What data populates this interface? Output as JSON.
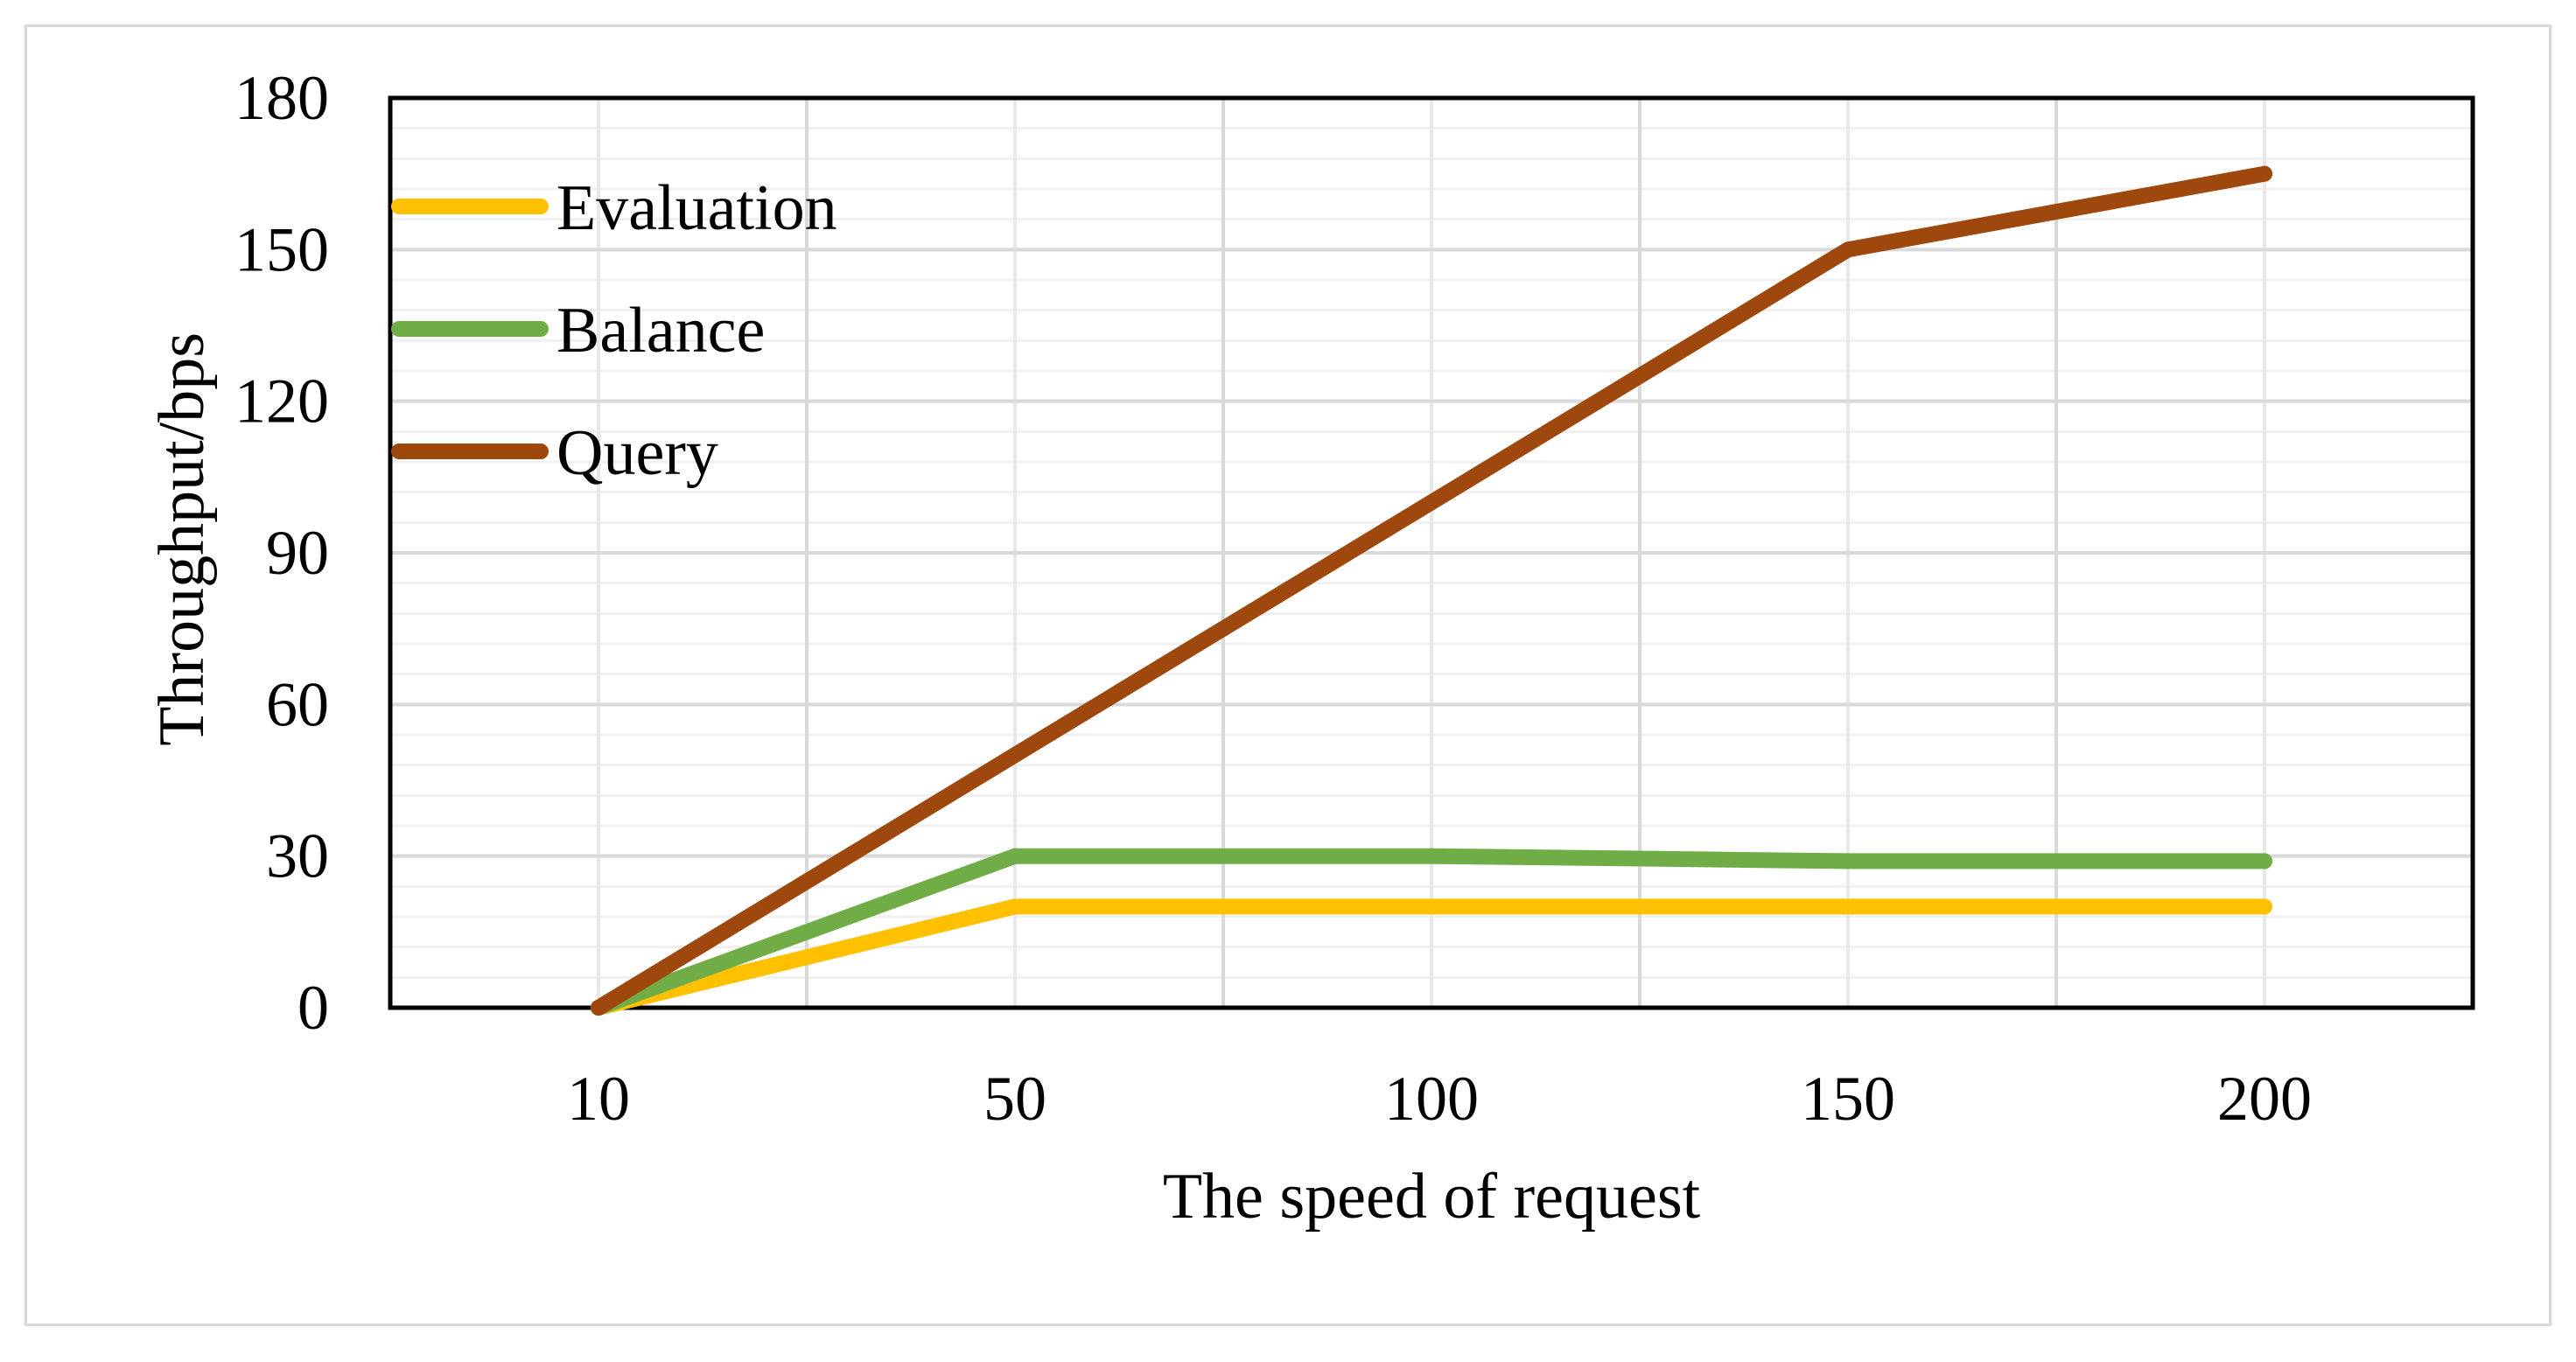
{
  "chart_data": {
    "type": "line",
    "title": "",
    "xlabel": "The speed of request",
    "ylabel": "Throughput/bps",
    "categories": [
      "10",
      "50",
      "100",
      "150",
      "200"
    ],
    "ylim": [
      0,
      180
    ],
    "yticks": [
      "0",
      "30",
      "60",
      "90",
      "120",
      "150",
      "180"
    ],
    "ytick_values": [
      0,
      30,
      60,
      90,
      120,
      150,
      180
    ],
    "grid": true,
    "legend_position": "top-left",
    "series": [
      {
        "name": "Evaluation",
        "color": "#FFC000",
        "values": [
          0,
          20,
          20,
          20,
          20
        ]
      },
      {
        "name": "Balance",
        "color": "#70AD47",
        "values": [
          0,
          30,
          30,
          29,
          29
        ]
      },
      {
        "name": "Query",
        "color": "#9E480E",
        "values": [
          0,
          50,
          100,
          150,
          165
        ]
      }
    ]
  }
}
